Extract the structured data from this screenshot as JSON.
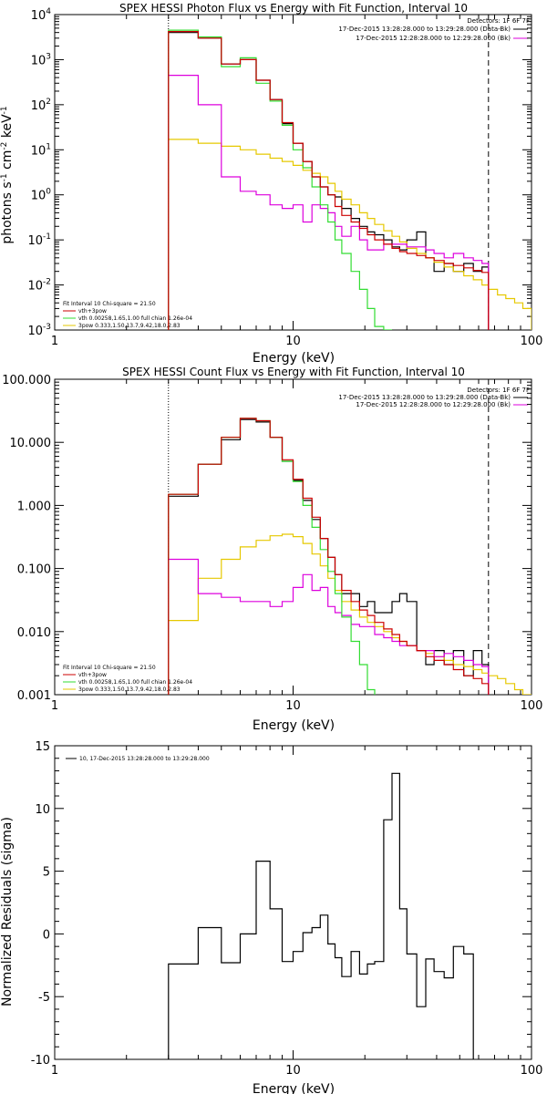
{
  "colors": {
    "data": "#000000",
    "total": "#cc0000",
    "vth": "#33dd33",
    "pow": "#e6c800",
    "bk": "#dd00dd",
    "background": "#ffffff"
  },
  "chart_data": [
    {
      "type": "line",
      "title": "SPEX HESSI Photon Flux vs Energy with Fit Function, Interval 10",
      "xlabel": "Energy (keV)",
      "ylabel": "photons s^-1 cm^-2 keV^-1",
      "xscale": "log",
      "yscale": "log",
      "xlim": [
        1,
        100
      ],
      "ylim": [
        0.001,
        10000
      ],
      "x_ticks": [
        "1",
        "10",
        "100"
      ],
      "y_ticks": [
        "10^-3",
        "10^-2",
        "10^-1",
        "10^0",
        "10^1",
        "10^2",
        "10^3",
        "10^4"
      ],
      "detectors": "Detectors: 1F 6F 7F",
      "time_legend": [
        {
          "text": "17-Dec-2015 13:28:28.000 to 13:29:28.000 (Data-Bk)",
          "color": "#000000"
        },
        {
          "text": "17-Dec-2015 12:28:28.000 to 12:29:28.000 (Bk)",
          "color": "#dd00dd"
        }
      ],
      "fit_legend": [
        {
          "text": "Fit Interval 10    Chi-square = 21.50",
          "color": null
        },
        {
          "text": "vth+3pow",
          "color": "#cc0000"
        },
        {
          "text": "vth 0.00258,1.65,1.00   full chian 1.26e-04",
          "color": "#33dd33"
        },
        {
          "text": "3pow 0.333,1.50,13.7,9.42,18.0,2.83",
          "color": "#e6c800"
        }
      ],
      "fit_range_keV": [
        3,
        66
      ],
      "edges": [
        3,
        4,
        5,
        6,
        7,
        8,
        9,
        10,
        11,
        12,
        13,
        14,
        15,
        16,
        17.5,
        19,
        20.5,
        22,
        24,
        26,
        28,
        30,
        33,
        36,
        39,
        43,
        47,
        52,
        57,
        62,
        66,
        72,
        78,
        85,
        92,
        100
      ],
      "series": [
        {
          "name": "Data-Bk",
          "color": "#000000",
          "values": [
            4000,
            3000,
            800,
            1000,
            350,
            130,
            38,
            14,
            5.5,
            2.5,
            1.5,
            1.0,
            0.9,
            0.5,
            0.3,
            0.2,
            0.15,
            0.13,
            0.1,
            0.07,
            0.06,
            0.1,
            0.15,
            0.04,
            0.02,
            0.03,
            0.02,
            0.03,
            0.02,
            0.025,
            null,
            null,
            null,
            null,
            null
          ]
        },
        {
          "name": "vth+3pow",
          "color": "#cc0000",
          "values": [
            4200,
            3000,
            800,
            1000,
            350,
            130,
            40,
            14,
            5.5,
            2.5,
            1.5,
            1.0,
            0.55,
            0.35,
            0.25,
            0.18,
            0.13,
            0.1,
            0.08,
            0.065,
            0.055,
            0.05,
            0.045,
            0.04,
            0.035,
            0.03,
            0.027,
            0.024,
            0.021,
            0.019,
            null,
            null,
            null,
            null,
            null
          ]
        },
        {
          "name": "vth",
          "color": "#33dd33",
          "values": [
            4500,
            3200,
            700,
            1100,
            300,
            120,
            35,
            10,
            4,
            1.5,
            0.6,
            0.25,
            0.1,
            0.05,
            0.02,
            0.008,
            0.003,
            0.0012,
            0.0005,
            null,
            null,
            null,
            null,
            null,
            null,
            null,
            null,
            null,
            null,
            null,
            null,
            null,
            null,
            null,
            null
          ]
        },
        {
          "name": "3pow",
          "color": "#e6c800",
          "values": [
            17,
            14,
            12,
            10,
            8,
            6.5,
            5.5,
            4.5,
            3.5,
            3,
            2.5,
            1.8,
            1.2,
            0.8,
            0.6,
            0.4,
            0.3,
            0.22,
            0.16,
            0.12,
            0.09,
            0.065,
            0.05,
            0.04,
            0.032,
            0.025,
            0.02,
            0.016,
            0.013,
            0.01,
            0.008,
            0.006,
            0.005,
            0.004,
            0.003
          ]
        },
        {
          "name": "Bk",
          "color": "#dd00dd",
          "values": [
            450,
            100,
            2.5,
            1.2,
            1.0,
            0.6,
            0.5,
            0.6,
            0.25,
            0.6,
            0.5,
            0.4,
            0.2,
            0.12,
            0.2,
            0.1,
            0.06,
            0.06,
            0.08,
            0.08,
            0.08,
            0.07,
            0.07,
            0.06,
            0.05,
            0.04,
            0.05,
            0.04,
            0.035,
            0.03,
            null,
            null,
            null,
            null,
            null
          ]
        }
      ]
    },
    {
      "type": "line",
      "title": "SPEX HESSI Count Flux vs Energy with Fit Function, Interval 10",
      "xlabel": "Energy (keV)",
      "ylabel": "",
      "xscale": "log",
      "yscale": "log",
      "xlim": [
        1,
        100
      ],
      "ylim": [
        0.001,
        100
      ],
      "x_ticks": [
        "1",
        "10",
        "100"
      ],
      "y_ticks": [
        "0.001",
        "0.010",
        "0.100",
        "1.000",
        "10.000",
        "100.000"
      ],
      "detectors": "Detectors: 1F 6F 7F",
      "time_legend": [
        {
          "text": "17-Dec-2015 13:28:28.000 to 13:29:28.000 (Data-Bk)",
          "color": "#000000"
        },
        {
          "text": "17-Dec-2015 12:28:28.000 to 12:29:28.000 (Bk)",
          "color": "#dd00dd"
        }
      ],
      "fit_legend": [
        {
          "text": "Fit Interval 10    Chi-square = 21.50",
          "color": null
        },
        {
          "text": "vth+3pow",
          "color": "#cc0000"
        },
        {
          "text": "vth 0.00258,1.65,1.00   full chian 1.26e-04",
          "color": "#33dd33"
        },
        {
          "text": "3pow 0.333,1.50,13.7,9.42,18.0,2.83",
          "color": "#e6c800"
        }
      ],
      "fit_range_keV": [
        3,
        66
      ],
      "edges": [
        3,
        4,
        5,
        6,
        7,
        8,
        9,
        10,
        11,
        12,
        13,
        14,
        15,
        16,
        17.5,
        19,
        20.5,
        22,
        24,
        26,
        28,
        30,
        33,
        36,
        39,
        43,
        47,
        52,
        57,
        62,
        66,
        72,
        78,
        85,
        92,
        100
      ],
      "series": [
        {
          "name": "Data-Bk",
          "color": "#000000",
          "values": [
            1.4,
            4.5,
            11,
            23,
            21,
            12,
            5,
            2.5,
            1.2,
            0.6,
            0.3,
            0.15,
            0.08,
            0.04,
            0.04,
            0.025,
            0.03,
            0.02,
            0.02,
            0.03,
            0.04,
            0.03,
            0.005,
            0.003,
            0.005,
            0.003,
            0.005,
            0.002,
            0.005,
            0.003,
            null,
            null,
            null,
            null,
            null
          ]
        },
        {
          "name": "vth+3pow",
          "color": "#cc0000",
          "values": [
            1.5,
            4.5,
            12,
            24,
            22,
            12,
            5.3,
            2.6,
            1.3,
            0.65,
            0.3,
            0.15,
            0.08,
            0.045,
            0.03,
            0.022,
            0.018,
            0.014,
            0.011,
            0.009,
            0.007,
            0.006,
            0.005,
            0.004,
            0.0035,
            0.003,
            0.0025,
            0.002,
            0.0018,
            0.0015,
            null,
            null,
            null,
            null,
            null
          ]
        },
        {
          "name": "vth",
          "color": "#33dd33",
          "values": [
            1.5,
            4.5,
            12,
            24,
            22,
            12,
            5,
            2.4,
            1.0,
            0.45,
            0.2,
            0.09,
            0.04,
            0.017,
            0.007,
            0.003,
            0.0012,
            null,
            null,
            null,
            null,
            null,
            null,
            null,
            null,
            null,
            null,
            null,
            null,
            null,
            null,
            null,
            null,
            null,
            null
          ]
        },
        {
          "name": "3pow",
          "color": "#e6c800",
          "values": [
            0.015,
            0.07,
            0.14,
            0.22,
            0.28,
            0.33,
            0.35,
            0.32,
            0.25,
            0.17,
            0.11,
            0.07,
            0.045,
            0.03,
            0.022,
            0.017,
            0.014,
            0.012,
            0.01,
            0.008,
            0.007,
            0.006,
            0.005,
            0.0045,
            0.004,
            0.0035,
            0.003,
            0.0028,
            0.0025,
            0.0022,
            0.002,
            0.0018,
            0.0015,
            0.0012,
            0.001
          ]
        },
        {
          "name": "Bk",
          "color": "#dd00dd",
          "values": [
            0.14,
            0.04,
            0.035,
            0.03,
            0.03,
            0.025,
            0.03,
            0.05,
            0.08,
            0.045,
            0.05,
            0.025,
            0.02,
            0.018,
            0.013,
            0.012,
            0.012,
            0.009,
            0.008,
            0.007,
            0.006,
            0.006,
            0.005,
            0.005,
            0.004,
            0.0045,
            0.004,
            0.0035,
            0.003,
            0.0028,
            null,
            null,
            null,
            null,
            null
          ]
        }
      ]
    },
    {
      "type": "line",
      "title": "",
      "xlabel": "Energy (keV)",
      "ylabel": "Normalized Residuals (sigma)",
      "xscale": "log",
      "yscale": "linear",
      "xlim": [
        1,
        100
      ],
      "ylim": [
        -10,
        15
      ],
      "x_ticks": [
        "1",
        "10",
        "100"
      ],
      "y_ticks": [
        "-10",
        "-5",
        "0",
        "5",
        "10",
        "15"
      ],
      "legend": [
        {
          "text": "10, 17-Dec-2015 13:28:28.000 to 13:29:28.000",
          "color": "#000000"
        }
      ],
      "edges": [
        3,
        4,
        5,
        6,
        7,
        8,
        9,
        10,
        11,
        12,
        13,
        14,
        15,
        16,
        17.5,
        19,
        20.5,
        22,
        24,
        26,
        28,
        30,
        33,
        36,
        39,
        43,
        47,
        52,
        57,
        62,
        66
      ],
      "series": [
        {
          "name": "",
          "color": "#000000",
          "values": [
            -2.4,
            0.5,
            -2.3,
            0.0,
            5.8,
            2.0,
            -2.2,
            -1.4,
            0.1,
            0.5,
            1.5,
            -0.8,
            -1.9,
            -3.4,
            -1.4,
            -3.2,
            -2.4,
            -2.2,
            9.1,
            12.8,
            2.0,
            -1.6,
            -5.8,
            -2.0,
            -3.0,
            -3.5,
            -1.0,
            -1.6,
            null,
            null
          ]
        }
      ]
    }
  ]
}
